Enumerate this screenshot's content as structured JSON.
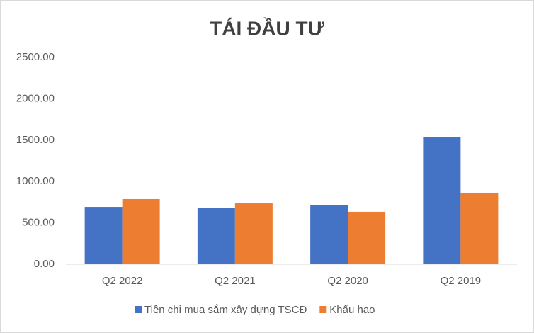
{
  "chart_data": {
    "type": "bar",
    "title": "TÁI ĐẦU TƯ",
    "categories": [
      "Q2 2022",
      "Q2 2021",
      "Q2 2020",
      "Q2 2019"
    ],
    "series": [
      {
        "name": "Tiền chi mua sắm xây dựng TSCĐ",
        "color": "#4472c4",
        "values": [
          693,
          685,
          711,
          1541
        ]
      },
      {
        "name": "Khấu hao",
        "color": "#ed7d31",
        "values": [
          788,
          736,
          634,
          865
        ]
      }
    ],
    "ylim": [
      0,
      2500
    ],
    "yticks": [
      {
        "value": 0,
        "label": "0.00"
      },
      {
        "value": 500,
        "label": "500.00"
      },
      {
        "value": 1000,
        "label": "1000.00"
      },
      {
        "value": 1500,
        "label": "1500.00"
      },
      {
        "value": 2000,
        "label": "2000.00"
      },
      {
        "value": 2500,
        "label": "2500.00"
      }
    ],
    "grid": false
  }
}
